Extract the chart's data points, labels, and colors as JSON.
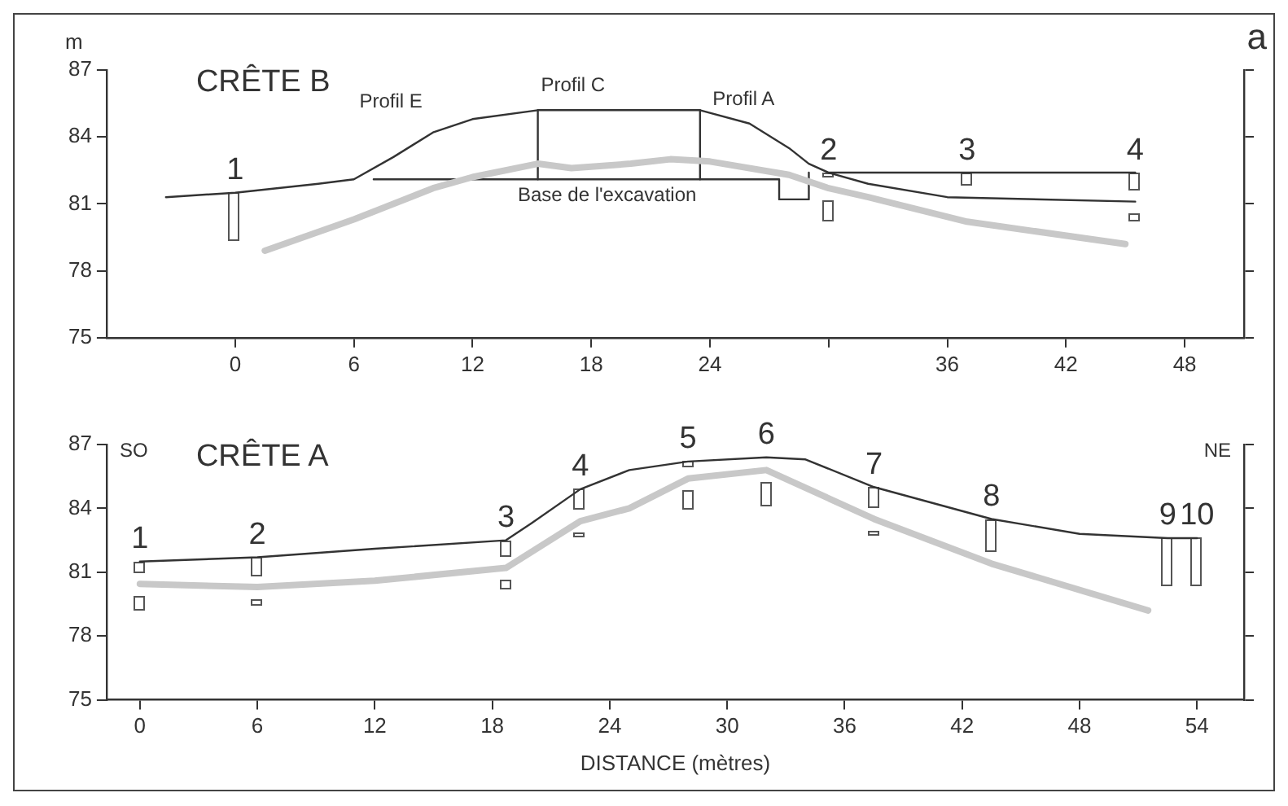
{
  "chart_data": [
    {
      "type": "line",
      "title": "CRÊTE B",
      "ylabel": "m",
      "xlim": [
        -6.5,
        51
      ],
      "xticks": [
        0,
        6,
        12,
        18,
        24,
        {
          "value": 30,
          "label": null
        },
        36,
        42,
        48
      ],
      "ylim": [
        75,
        87
      ],
      "yticks": [
        75,
        78,
        81,
        84,
        87
      ],
      "grid": false,
      "legend": false,
      "marker": "none",
      "line_style": "solid",
      "series": [
        {
          "color": "#333333",
          "x": [
            -3.5,
            0,
            4.2,
            6,
            8,
            10,
            12,
            15.3,
            23.5,
            26,
            28,
            29,
            30,
            32,
            36,
            45.5
          ],
          "values": [
            81.3,
            81.5,
            81.9,
            82.1,
            83.1,
            84.2,
            84.8,
            85.2,
            85.2,
            84.6,
            83.5,
            82.8,
            82.4,
            81.9,
            81.3,
            81.1
          ]
        },
        {
          "color": "#c8c8c8",
          "x": [
            1.5,
            6,
            10,
            12,
            15.3,
            17,
            20,
            22,
            24,
            28,
            30,
            32,
            37,
            45
          ],
          "values": [
            78.9,
            80.3,
            81.7,
            82.2,
            82.8,
            82.6,
            82.8,
            83.0,
            82.9,
            82.3,
            81.7,
            81.3,
            80.2,
            79.2
          ]
        },
        {
          "color": "#333333",
          "x": [
            15.3,
            15.3
          ],
          "values": [
            82.1,
            85.2
          ]
        },
        {
          "color": "#333333",
          "x": [
            23.5,
            23.5
          ],
          "values": [
            82.1,
            85.2
          ]
        },
        {
          "color": "#333333",
          "x": [
            7,
            27.5,
            27.5,
            29,
            29
          ],
          "values": [
            82.1,
            82.1,
            81.2,
            81.2,
            82.4
          ]
        },
        {
          "color": "#333333",
          "x": [
            30,
            45.5
          ],
          "values": [
            82.4,
            82.4
          ]
        }
      ],
      "annotations": [
        "a",
        "Profil E",
        "Profil C",
        "Profil A",
        "Base de l'excavation",
        {
          "text": "1",
          "x": 0,
          "y": 81.5
        },
        {
          "text": "2",
          "x": 30,
          "y": 82.4
        },
        {
          "text": "3",
          "x": 37,
          "y": 82.4
        },
        {
          "text": "4",
          "x": 45.5,
          "y": 82.4
        }
      ]
    },
    {
      "type": "line",
      "title": "CRÊTE A",
      "xlabel": "DISTANCE (mètres)",
      "xlim": [
        -1.7,
        56.4
      ],
      "xticks": [
        0,
        6,
        12,
        18,
        24,
        30,
        36,
        42,
        48,
        54
      ],
      "ylim": [
        75,
        87
      ],
      "yticks": [
        75,
        78,
        81,
        84,
        87
      ],
      "grid": false,
      "legend": false,
      "marker": "none",
      "line_style": "solid",
      "series": [
        {
          "color": "#333333",
          "x": [
            0,
            6,
            12,
            18.7,
            20,
            22.5,
            25,
            28,
            32,
            34,
            37.5,
            43.5,
            48,
            52.5,
            54
          ],
          "values": [
            81.5,
            81.7,
            82.1,
            82.5,
            83.3,
            84.9,
            85.8,
            86.2,
            86.4,
            86.3,
            85.0,
            83.5,
            82.8,
            82.6,
            82.6
          ]
        },
        {
          "color": "#c8c8c8",
          "x": [
            0,
            6,
            12,
            18.7,
            22.5,
            25,
            28,
            32,
            37.5,
            43.5,
            51.5
          ],
          "values": [
            80.45,
            80.3,
            80.6,
            81.2,
            83.4,
            84.0,
            85.4,
            85.8,
            83.5,
            81.4,
            79.2
          ]
        }
      ],
      "annotations": [
        "SO",
        "NE",
        {
          "text": "1",
          "x": 0,
          "y": 81.5
        },
        {
          "text": "2",
          "x": 6,
          "y": 81.7
        },
        {
          "text": "3",
          "x": 18.7,
          "y": 82.5
        },
        {
          "text": "4",
          "x": 22.5,
          "y": 84.9
        },
        {
          "text": "5",
          "x": 28,
          "y": 86.2
        },
        {
          "text": "6",
          "x": 32,
          "y": 86.4
        },
        {
          "text": "7",
          "x": 37.5,
          "y": 85.0
        },
        {
          "text": "8",
          "x": 43.5,
          "y": 83.5
        },
        {
          "text": "9",
          "x": 52.5,
          "y": 82.6
        },
        {
          "text": "10",
          "x": 54,
          "y": 82.6
        }
      ]
    }
  ]
}
